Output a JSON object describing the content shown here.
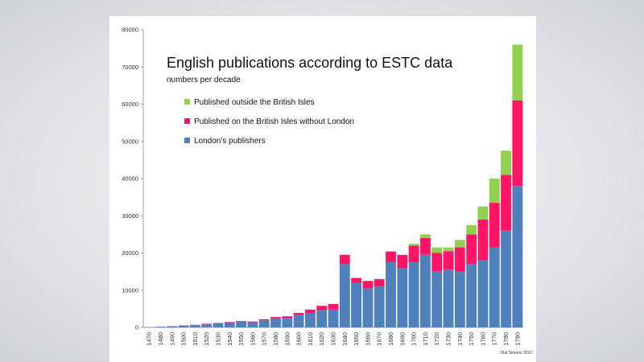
{
  "chart_data": {
    "type": "bar",
    "stacked": true,
    "title": "English publications according to ESTC data",
    "subtitle": "numbers per decade",
    "credit": "Olaf Simons 2010",
    "ylim": [
      0,
      80000
    ],
    "yticks": [
      0,
      10000,
      20000,
      30000,
      40000,
      50000,
      60000,
      70000,
      80000
    ],
    "grid": false,
    "legend_position": "top-left",
    "categories": [
      "1470",
      "1480",
      "1490",
      "1500",
      "1510",
      "1520",
      "1530",
      "1540",
      "1550",
      "1560",
      "1570",
      "1580",
      "1590",
      "1600",
      "1610",
      "1620",
      "1630",
      "1640",
      "1650",
      "1660",
      "1670",
      "1680",
      "1690",
      "1700",
      "1710",
      "1720",
      "1730",
      "1740",
      "1750",
      "1760",
      "1770",
      "1780",
      "1790"
    ],
    "series": [
      {
        "name": "London's publishers",
        "color": "#4f81bd",
        "values": [
          100,
          200,
          300,
          500,
          600,
          900,
          1100,
          1300,
          1500,
          1400,
          1900,
          2400,
          2600,
          3300,
          3900,
          4600,
          4800,
          17000,
          12000,
          10500,
          11000,
          17500,
          16000,
          17500,
          19500,
          15000,
          15500,
          15000,
          17000,
          18000,
          21500,
          26000,
          38000
        ]
      },
      {
        "name": "Published on the British Isles without London",
        "color": "#ff1466",
        "values": [
          0,
          0,
          50,
          50,
          100,
          100,
          100,
          150,
          200,
          200,
          300,
          400,
          400,
          600,
          900,
          1200,
          1500,
          2500,
          1300,
          2000,
          2000,
          2900,
          3500,
          4500,
          4500,
          5000,
          5000,
          6500,
          8000,
          11000,
          12000,
          15000,
          23000
        ]
      },
      {
        "name": "Published outside the British Isles",
        "color": "#92d050",
        "values": [
          0,
          0,
          0,
          0,
          0,
          0,
          0,
          0,
          0,
          0,
          0,
          0,
          0,
          0,
          0,
          0,
          0,
          0,
          0,
          0,
          0,
          0,
          0,
          500,
          1000,
          1500,
          1000,
          2000,
          2500,
          3500,
          6500,
          6500,
          15000
        ]
      }
    ]
  }
}
